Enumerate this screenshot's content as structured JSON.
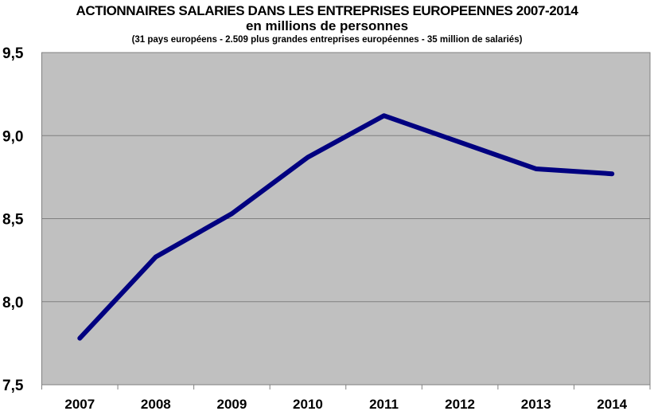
{
  "chart_data": {
    "type": "line",
    "title": "ACTIONNAIRES SALARIES DANS LES ENTREPRISES EUROPEENNES 2007-2014",
    "subtitle": "en millions de personnes",
    "note": "(31 pays européens  - 2.509 plus grandes entreprises  européennes  - 35 million de salariés)",
    "xlabel": "",
    "ylabel": "",
    "categories": [
      "2007",
      "2008",
      "2009",
      "2010",
      "2011",
      "2012",
      "2013",
      "2014"
    ],
    "series": [
      {
        "name": "Actionnaires salariés",
        "values": [
          7.78,
          8.27,
          8.53,
          8.87,
          9.12,
          8.96,
          8.8,
          8.77
        ],
        "color": "#000080"
      }
    ],
    "ylim": [
      7.5,
      9.5
    ],
    "yticks": [
      {
        "v": 7.5,
        "label": "7,5"
      },
      {
        "v": 8.0,
        "label": "8,0"
      },
      {
        "v": 8.5,
        "label": "8,5"
      },
      {
        "v": 9.0,
        "label": "9,0"
      },
      {
        "v": 9.5,
        "label": "9,5"
      }
    ],
    "grid": true,
    "legend": "none",
    "plot_bg": "#c0c0c0"
  }
}
